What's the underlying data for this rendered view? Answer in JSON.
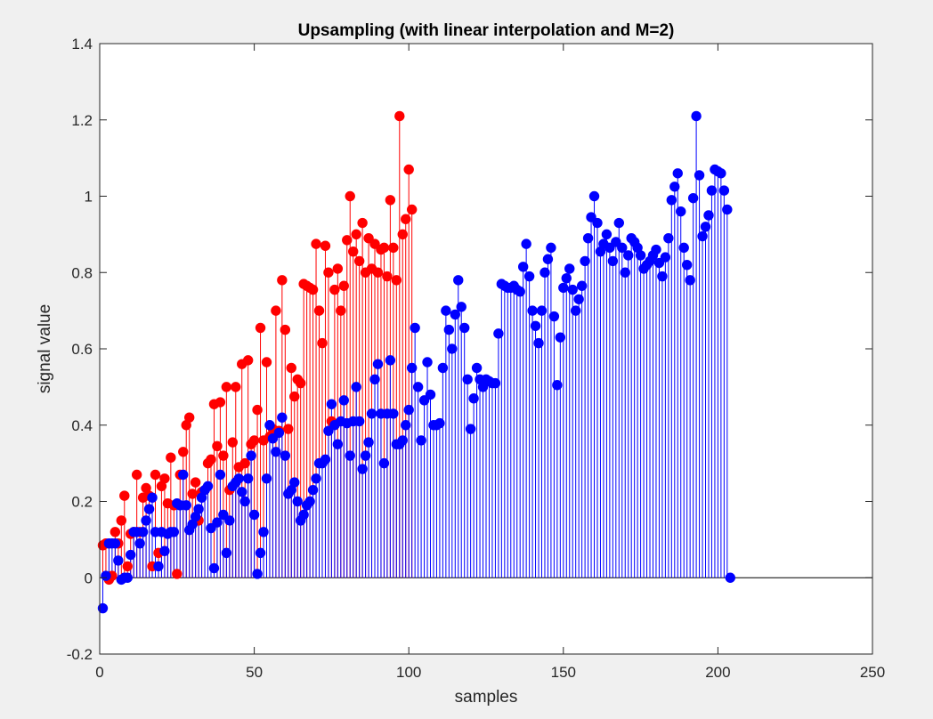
{
  "chart_data": {
    "type": "stem",
    "title": "Upsampling (with linear interpolation and M=2)",
    "xlabel": "samples",
    "ylabel": "signal value",
    "xlim": [
      0,
      250
    ],
    "ylim": [
      -0.2,
      1.4
    ],
    "xticks": [
      "0",
      "50",
      "100",
      "150",
      "200",
      "250"
    ],
    "yticks": [
      "-0.2",
      "0",
      "0.2",
      "0.4",
      "0.6",
      "0.8",
      "1",
      "1.2",
      "1.4"
    ],
    "xtick_values": [
      0,
      50,
      100,
      150,
      200,
      250
    ],
    "ytick_values": [
      -0.2,
      0,
      0.2,
      0.4,
      0.6,
      0.8,
      1.0,
      1.2,
      1.4
    ],
    "grid": false,
    "series": [
      {
        "color": "#ff0000",
        "x_start": 1,
        "values": [
          0.085,
          0.09,
          -0.005,
          0.005,
          0.12,
          0.09,
          0.15,
          0.215,
          0.03,
          0.115,
          0.12,
          0.27,
          0.12,
          0.21,
          0.235,
          0.215,
          0.03,
          0.27,
          0.065,
          0.24,
          0.26,
          0.195,
          0.315,
          0.19,
          0.01,
          0.27,
          0.33,
          0.4,
          0.42,
          0.22,
          0.25,
          0.15,
          0.225,
          0.23,
          0.3,
          0.31,
          0.455,
          0.345,
          0.46,
          0.32,
          0.5,
          0.23,
          0.355,
          0.5,
          0.29,
          0.56,
          0.3,
          0.57,
          0.35,
          0.36,
          0.44,
          0.655,
          0.36,
          0.565,
          0.37,
          0.39,
          0.7,
          0.385,
          0.78,
          0.65,
          0.39,
          0.55,
          0.475,
          0.52,
          0.51,
          0.77,
          0.765,
          0.76,
          0.755,
          0.875,
          0.7,
          0.615,
          0.87,
          0.8,
          0.41,
          0.755,
          0.81,
          0.7,
          0.765,
          0.885,
          1.0,
          0.855,
          0.9,
          0.83,
          0.93,
          0.8,
          0.89,
          0.81,
          0.875,
          0.8,
          0.86,
          0.865,
          0.79,
          0.99,
          0.865,
          0.78,
          1.21,
          0.9,
          0.94,
          1.07,
          0.965
        ],
        "x_values": [
          1,
          2,
          3,
          4,
          5,
          6,
          7,
          8,
          9,
          10,
          11,
          12,
          13,
          14,
          15,
          16,
          17,
          18,
          19,
          20,
          21,
          22,
          23,
          24,
          25,
          26,
          27,
          28,
          29,
          30,
          31,
          32,
          33,
          34,
          35,
          36,
          37,
          38,
          39,
          40,
          41,
          42,
          43,
          44,
          45,
          46,
          47,
          48,
          49,
          50,
          51,
          52,
          53,
          54,
          55,
          56,
          57,
          58,
          59,
          60,
          61,
          62,
          63,
          64,
          65,
          66,
          67,
          68,
          69,
          70,
          71,
          72,
          73,
          74,
          75,
          76,
          77,
          78,
          79,
          80,
          81,
          82,
          83,
          84,
          85,
          86,
          87,
          88,
          89,
          90,
          91,
          92,
          93,
          94,
          95,
          96,
          97,
          98,
          99,
          100,
          101
        ]
      },
      {
        "color": "#0000ff",
        "x_start": 1,
        "values": [
          -0.08,
          0.005,
          0.09,
          0.09,
          0.09,
          0.045,
          -0.005,
          0.0,
          0.0,
          0.06,
          0.12,
          0.12,
          0.09,
          0.12,
          0.15,
          0.18,
          0.21,
          0.12,
          0.03,
          0.12,
          0.07,
          0.115,
          0.12,
          0.12,
          0.195,
          0.19,
          0.27,
          0.19,
          0.125,
          0.14,
          0.16,
          0.18,
          0.21,
          0.23,
          0.24,
          0.13,
          0.025,
          0.145,
          0.27,
          0.165,
          0.065,
          0.15,
          0.24,
          0.25,
          0.26,
          0.225,
          0.2,
          0.26,
          0.32,
          0.165,
          0.01,
          0.065,
          0.12,
          0.26,
          0.4,
          0.365,
          0.33,
          0.38,
          0.42,
          0.32,
          0.22,
          0.23,
          0.25,
          0.2,
          0.15,
          0.165,
          0.19,
          0.2,
          0.23,
          0.26,
          0.3,
          0.3,
          0.31,
          0.385,
          0.455,
          0.4,
          0.35,
          0.41,
          0.465,
          0.405,
          0.32,
          0.41,
          0.5,
          0.41,
          0.285,
          0.32,
          0.355,
          0.43,
          0.52,
          0.56,
          0.43,
          0.3,
          0.43,
          0.57,
          0.43,
          0.35,
          0.35,
          0.36,
          0.4,
          0.44,
          0.55,
          0.655,
          0.5,
          0.36,
          0.465,
          0.565,
          0.48,
          0.4,
          0.4,
          0.405,
          0.55,
          0.7,
          0.65,
          0.6,
          0.69,
          0.78,
          0.71,
          0.655,
          0.52,
          0.39,
          0.47,
          0.55,
          0.52,
          0.5,
          0.52,
          0.515,
          0.51,
          0.51,
          0.64,
          0.77,
          0.765,
          0.76,
          0.76,
          0.765,
          0.755,
          0.75,
          0.815,
          0.875,
          0.79,
          0.7,
          0.66,
          0.615,
          0.7,
          0.8,
          0.835,
          0.865,
          0.685,
          0.505,
          0.63,
          0.76,
          0.785,
          0.81,
          0.755,
          0.7,
          0.73,
          0.765,
          0.83,
          0.89,
          0.945,
          1.0,
          0.93,
          0.855,
          0.875,
          0.9,
          0.865,
          0.83,
          0.88,
          0.93,
          0.865,
          0.8,
          0.845,
          0.89,
          0.88,
          0.865,
          0.845,
          0.81,
          0.82,
          0.83,
          0.845,
          0.86,
          0.825,
          0.79,
          0.84,
          0.89,
          0.99,
          1.025,
          1.06,
          0.96,
          0.865,
          0.82,
          0.78,
          0.995,
          1.21,
          1.055,
          0.895,
          0.92,
          0.95,
          1.015,
          1.07,
          1.065,
          1.06,
          1.015,
          0.965,
          0.0
        ]
      }
    ]
  }
}
